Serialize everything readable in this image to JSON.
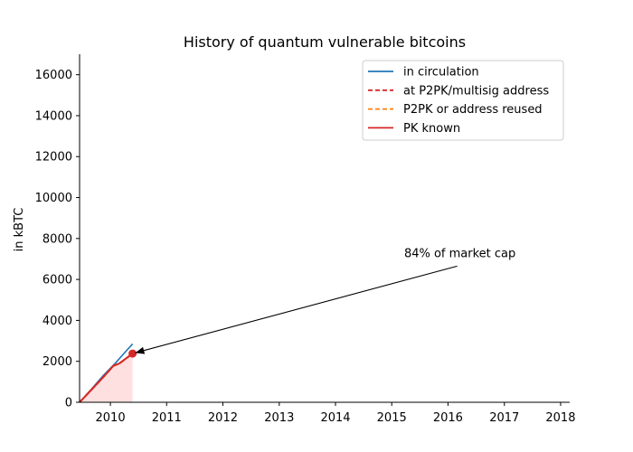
{
  "chart_data": {
    "type": "line",
    "title": "History of quantum vulnerable bitcoins",
    "xlabel": "",
    "ylabel": "in kBTC",
    "xlim": [
      "2009-06-15",
      "2018-03-01"
    ],
    "ylim": [
      0,
      17000
    ],
    "xticks": [
      {
        "date": "2010-01-01",
        "label": "2010"
      },
      {
        "date": "2011-01-01",
        "label": "2011"
      },
      {
        "date": "2012-01-01",
        "label": "2012"
      },
      {
        "date": "2013-01-01",
        "label": "2013"
      },
      {
        "date": "2014-01-01",
        "label": "2014"
      },
      {
        "date": "2015-01-01",
        "label": "2015"
      },
      {
        "date": "2016-01-01",
        "label": "2016"
      },
      {
        "date": "2017-01-01",
        "label": "2017"
      },
      {
        "date": "2018-01-01",
        "label": "2018"
      }
    ],
    "yticks": [
      0,
      2000,
      4000,
      6000,
      8000,
      10000,
      12000,
      14000,
      16000
    ],
    "grid": false,
    "legend_position": "top-right",
    "series": [
      {
        "name": "in circulation",
        "color": "#1f77b4",
        "dash": "solid",
        "points": [
          {
            "x": "2009-06-15",
            "y": 0
          },
          {
            "x": "2009-09-01",
            "y": 650
          },
          {
            "x": "2009-11-15",
            "y": 1300
          },
          {
            "x": "2010-02-01",
            "y": 1900
          },
          {
            "x": "2010-04-01",
            "y": 2400
          },
          {
            "x": "2010-05-25",
            "y": 2850
          }
        ]
      },
      {
        "name": "at P2PK/multisig address",
        "color": "#d62728",
        "dash": "dashed",
        "points": [
          {
            "x": "2009-06-15",
            "y": 0
          },
          {
            "x": "2009-09-01",
            "y": 620
          },
          {
            "x": "2009-11-15",
            "y": 1220
          },
          {
            "x": "2010-01-20",
            "y": 1780
          },
          {
            "x": "2010-03-01",
            "y": 1900
          },
          {
            "x": "2010-05-25",
            "y": 2380
          }
        ]
      },
      {
        "name": "P2PK or address reused",
        "color": "#ff7f0e",
        "dash": "dashed",
        "points": [
          {
            "x": "2009-06-15",
            "y": 0
          },
          {
            "x": "2009-09-01",
            "y": 620
          },
          {
            "x": "2009-11-15",
            "y": 1220
          },
          {
            "x": "2010-01-20",
            "y": 1780
          },
          {
            "x": "2010-03-01",
            "y": 1900
          },
          {
            "x": "2010-05-25",
            "y": 2380
          }
        ]
      },
      {
        "name": "PK known",
        "color": "#d62728",
        "dash": "solid",
        "points": [
          {
            "x": "2009-06-15",
            "y": 0
          },
          {
            "x": "2009-09-01",
            "y": 620
          },
          {
            "x": "2009-11-15",
            "y": 1220
          },
          {
            "x": "2010-01-20",
            "y": 1780
          },
          {
            "x": "2010-03-01",
            "y": 1900
          },
          {
            "x": "2010-05-25",
            "y": 2380
          }
        ]
      }
    ],
    "shaded_area": {
      "color": "#ffe0e0",
      "x_end": "2010-05-25"
    },
    "highlight_point": {
      "x": "2010-05-25",
      "y": 2380,
      "color": "#d62728"
    },
    "annotation": {
      "text": "84% of market cap",
      "target": {
        "x": "2010-05-25",
        "y": 2380
      },
      "text_anchor": {
        "x": "2016-03-01",
        "y": 6650
      }
    }
  }
}
